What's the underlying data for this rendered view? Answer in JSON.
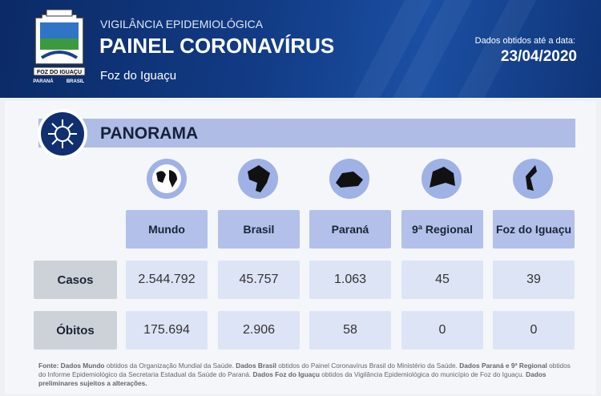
{
  "header": {
    "subtitle": "VIGILÂNCIA EPIDEMIOLÓGICA",
    "title": "PAINEL CORONAVÍRUS",
    "city": "Foz do Iguaçu",
    "date_label": "Dados obtidos até a data:",
    "date": "23/04/2020",
    "logo": {
      "name": "FOZ DO IGUAÇU",
      "left": "PARANÁ",
      "right": "BRASIL"
    }
  },
  "section": "PANORAMA",
  "table": {
    "columns": [
      "Mundo",
      "Brasil",
      "Paraná",
      "9ª Regional",
      "Foz do Iguaçu"
    ],
    "rows": [
      [
        "Casos",
        "2.544.792",
        "45.757",
        "1.063",
        "45",
        "39"
      ],
      [
        "Óbitos",
        "175.694",
        "2.906",
        "58",
        "0",
        "0"
      ]
    ]
  },
  "footnote": {
    "segments": [
      {
        "text": "Fonte: Dados Mundo",
        "bold": true
      },
      {
        "text": " obtidos da Organização Mundial da Saúde. ",
        "bold": false
      },
      {
        "text": "Dados Brasil",
        "bold": true
      },
      {
        "text": " obtidos do Painel Coronavírus Brasil do Ministério da Saúde. ",
        "bold": false
      },
      {
        "text": "Dados Paraná e 9ª Regional",
        "bold": true
      },
      {
        "text": " obtidos do Informe Epidemiológico da Secretaria Estadual da Saúde do Paraná. ",
        "bold": false
      },
      {
        "text": "Dados Foz do Iguaçu",
        "bold": true
      },
      {
        "text": " obtidos da Vigilância Epidemiológica do município de Foz do Iguaçu. ",
        "bold": false
      },
      {
        "text": "Dados preliminares sujeitos a alterações.",
        "bold": true
      }
    ]
  }
}
